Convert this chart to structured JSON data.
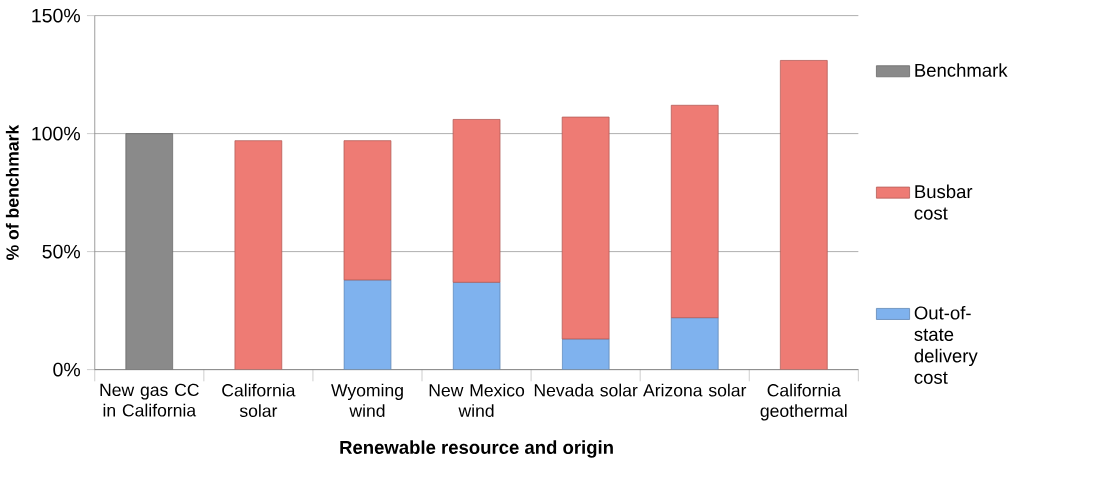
{
  "chart_data": {
    "type": "bar",
    "stacked": true,
    "xlabel": "Renewable resource and origin",
    "ylabel": "% of benchmark",
    "categories": [
      "New gas CC in California",
      "California solar",
      "Wyoming wind",
      "New Mexico wind",
      "Nevada solar",
      "Arizona solar",
      "California geothermal"
    ],
    "series": [
      {
        "name": "Out-of-state delivery cost",
        "color": "#7fb2ee",
        "values": [
          null,
          null,
          38,
          37,
          13,
          22,
          null
        ]
      },
      {
        "name": "Busbar cost",
        "color": "#ee7b74",
        "values": [
          null,
          97,
          59,
          69,
          94,
          90,
          131
        ]
      },
      {
        "name": "Benchmark",
        "color": "#8a8a8a",
        "values": [
          100,
          null,
          null,
          null,
          null,
          null,
          null
        ]
      }
    ],
    "ylim": [
      0,
      150
    ],
    "yticks": [
      {
        "value": 0,
        "label": "0%"
      },
      {
        "value": 50,
        "label": "50%"
      },
      {
        "value": 100,
        "label": "100%"
      },
      {
        "value": 150,
        "label": "150%"
      }
    ],
    "grid": "y",
    "legend": "right"
  }
}
